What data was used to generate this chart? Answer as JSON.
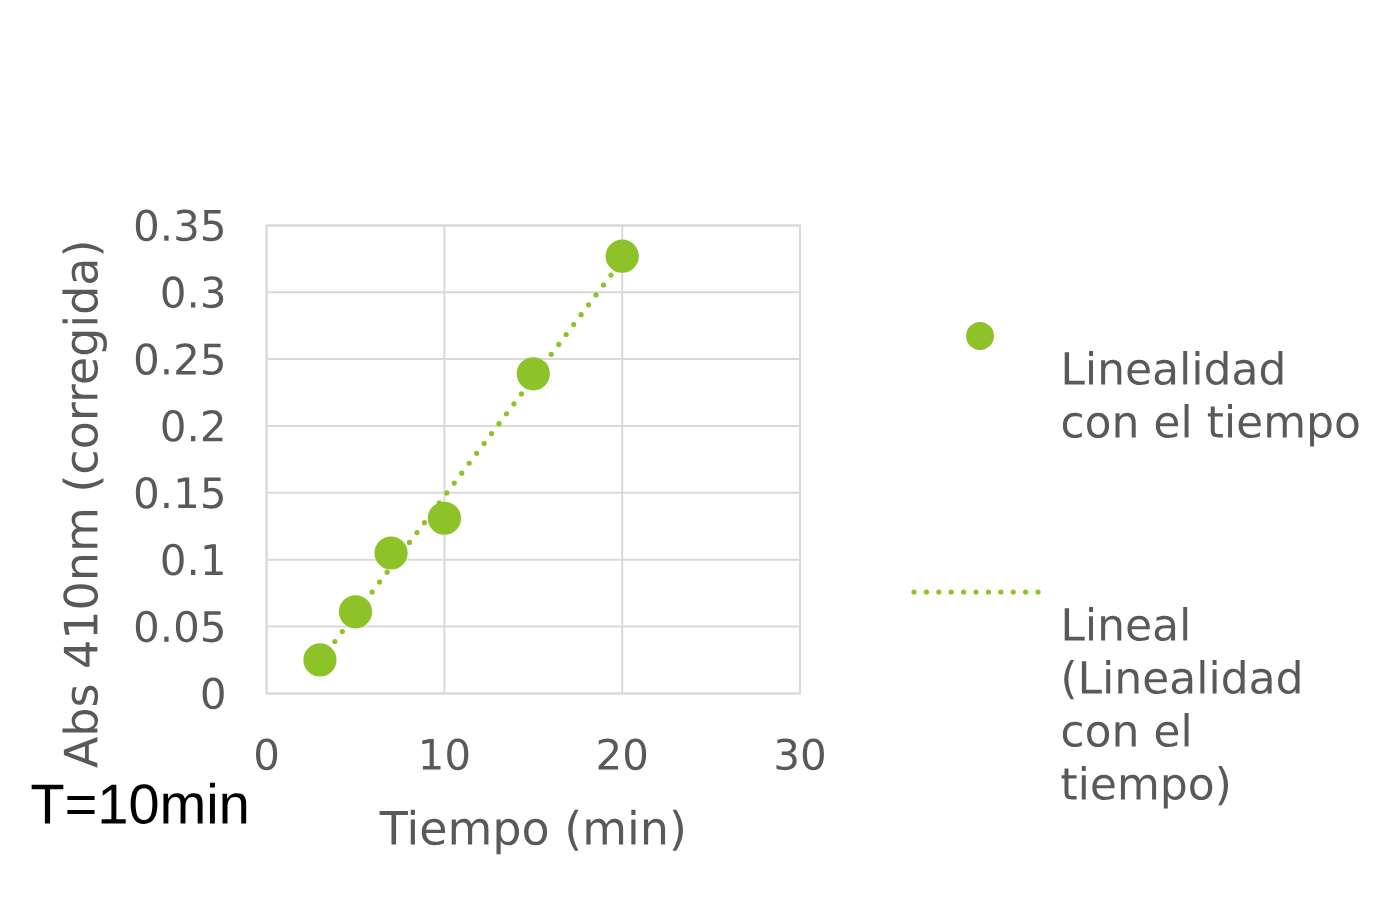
{
  "chart_data": {
    "type": "scatter",
    "xlabel": "Tiempo (min)",
    "ylabel": "Abs 410nm (corregida)",
    "annotations": [
      "T=10min"
    ],
    "xlim": [
      0,
      30
    ],
    "xticks": [
      0,
      10,
      20,
      30
    ],
    "ylim": [
      0,
      0.35
    ],
    "yticks": [
      0,
      0.05,
      0.1,
      0.15,
      0.2,
      0.25,
      0.3,
      0.35
    ],
    "grid": true,
    "legend": "right",
    "series": [
      {
        "name": "Linealidad con el tiempo",
        "type": "scatter",
        "color": "#8dc228",
        "marker": "circle",
        "x": [
          3,
          5,
          7,
          10,
          15,
          20
        ],
        "values": [
          0.025,
          0.061,
          0.105,
          0.131,
          0.239,
          0.327
        ]
      },
      {
        "name": "Lineal (Linealidad con el tiempo)",
        "type": "line",
        "color": "#8dc228",
        "marker": "none",
        "line_style": "dotted",
        "x": [
          3,
          20
        ],
        "values": [
          0.024,
          0.324
        ]
      }
    ]
  }
}
